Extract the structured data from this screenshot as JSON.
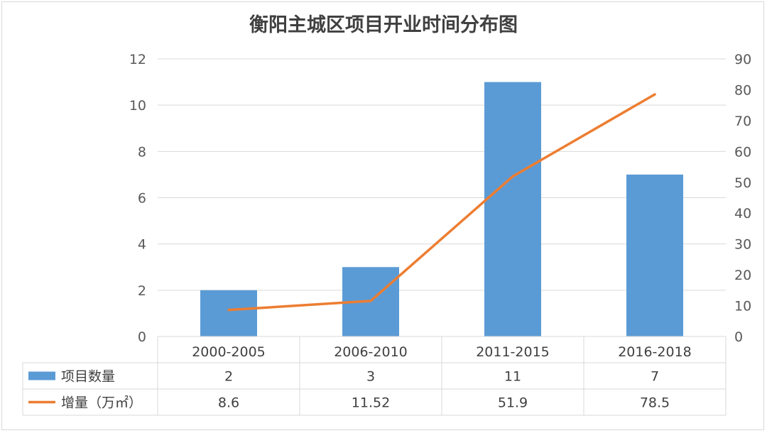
{
  "chart_data": {
    "type": "bar",
    "title": "衡阳主城区项目开业时间分布图",
    "categories": [
      "2000-2005",
      "2006-2010",
      "2011-2015",
      "2016-2018"
    ],
    "series": [
      {
        "name": "项目数量",
        "type": "bar",
        "axis": "left",
        "values": [
          2,
          3,
          11,
          7
        ],
        "labels": [
          "2",
          "3",
          "11",
          "7"
        ]
      },
      {
        "name": "增量（万㎡）",
        "type": "line",
        "axis": "right",
        "values": [
          8.6,
          11.52,
          51.9,
          78.5
        ],
        "labels": [
          "8.6",
          "11.52",
          "51.9",
          "78.5"
        ]
      }
    ],
    "y_left": {
      "range": [
        0,
        12
      ],
      "ticks": [
        "0",
        "2",
        "4",
        "6",
        "8",
        "10",
        "12"
      ]
    },
    "y_right": {
      "range": [
        0,
        90
      ],
      "ticks": [
        "0",
        "10",
        "20",
        "30",
        "40",
        "50",
        "60",
        "70",
        "80",
        "90"
      ]
    },
    "grid": true,
    "legend": "data-table-left",
    "colors": {
      "bar": "#5b9bd5",
      "line": "#ed7d31",
      "grid": "#d9d9d9"
    }
  }
}
